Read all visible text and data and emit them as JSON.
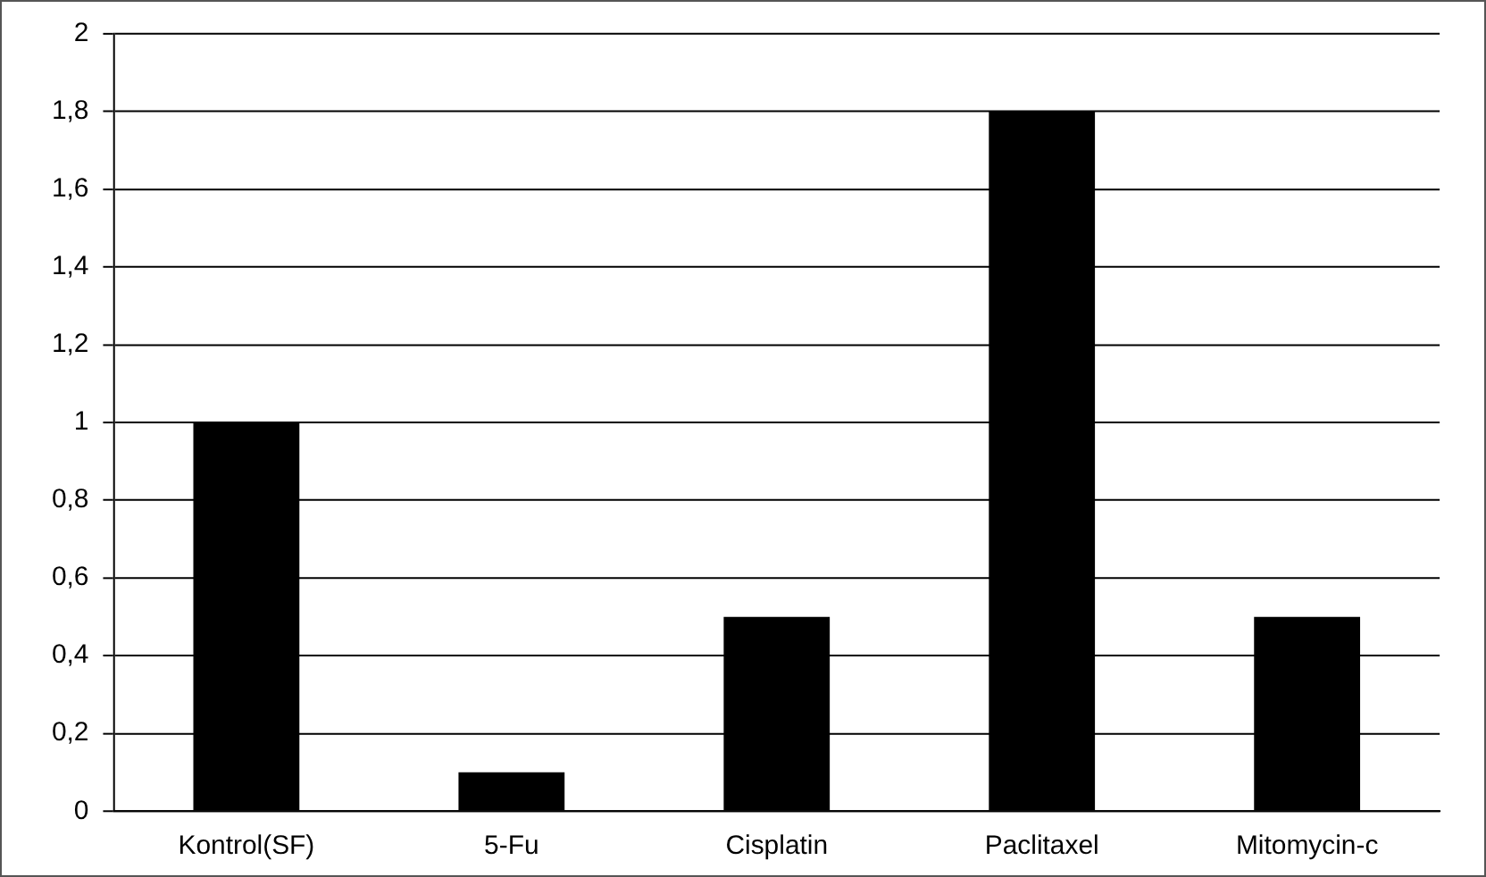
{
  "chart_data": {
    "type": "bar",
    "categories": [
      "Kontrol(SF)",
      "5-Fu",
      "Cisplatin",
      "Paclitaxel",
      "Mitomycin-c"
    ],
    "values": [
      1,
      0.1,
      0.5,
      1.8,
      0.5
    ],
    "color": "#000000",
    "ylim": [
      0,
      2
    ],
    "yticks": [
      0,
      {
        "value": 0.2,
        "label": "0,2"
      },
      {
        "value": 0.4,
        "label": "0,4"
      },
      {
        "value": 0.6,
        "label": "0,6"
      },
      {
        "value": 0.8,
        "label": "0,8"
      },
      1,
      {
        "value": 1.2,
        "label": "1,2"
      },
      {
        "value": 1.4,
        "label": "1,4"
      },
      {
        "value": 1.6,
        "label": "1,6"
      },
      {
        "value": 1.8,
        "label": "1,8"
      },
      2
    ],
    "grid": "y",
    "legend": false
  }
}
